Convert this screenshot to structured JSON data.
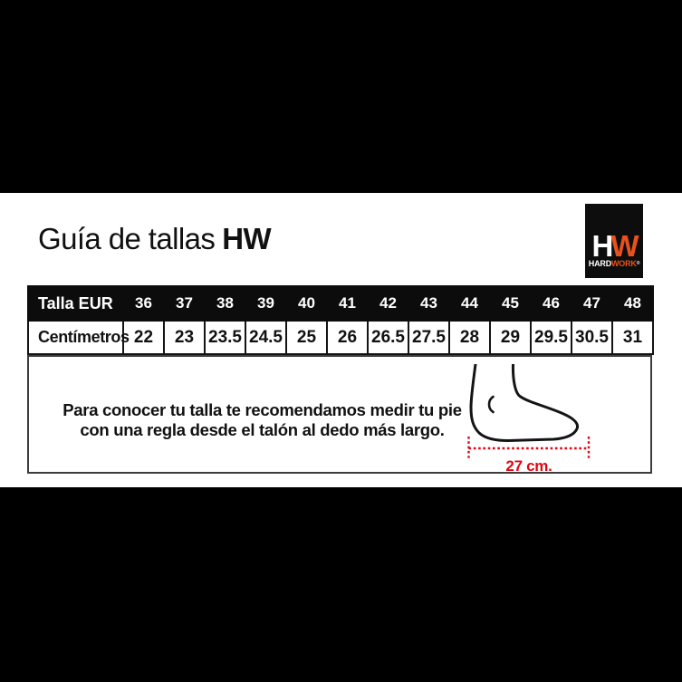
{
  "title": {
    "regular": "Guía de tallas",
    "bold": "HW"
  },
  "logo": {
    "h": "H",
    "w": "W",
    "hard": "HARD",
    "work": "WORK",
    "mark": "®"
  },
  "table": {
    "row1_label": "Talla EUR",
    "sizes_eur": [
      "36",
      "37",
      "38",
      "39",
      "40",
      "41",
      "42",
      "43",
      "44",
      "45",
      "46",
      "47",
      "48"
    ],
    "row2_label": "Centímetros",
    "centimeters": [
      "22",
      "23",
      "23.5",
      "24.5",
      "25",
      "26",
      "26.5",
      "27.5",
      "28",
      "29",
      "29.5",
      "30.5",
      "31"
    ]
  },
  "instructions": {
    "line1": "Para conocer tu talla te recomendamos medir tu pie",
    "line2": "con una regla desde el talón al dedo más largo."
  },
  "measurement": {
    "label": "27 cm."
  },
  "icons": {
    "foot": "foot-profile-icon"
  },
  "colors": {
    "accent_orange": "#e8511c",
    "measure_red": "#e30613",
    "bar_black": "#000000"
  }
}
